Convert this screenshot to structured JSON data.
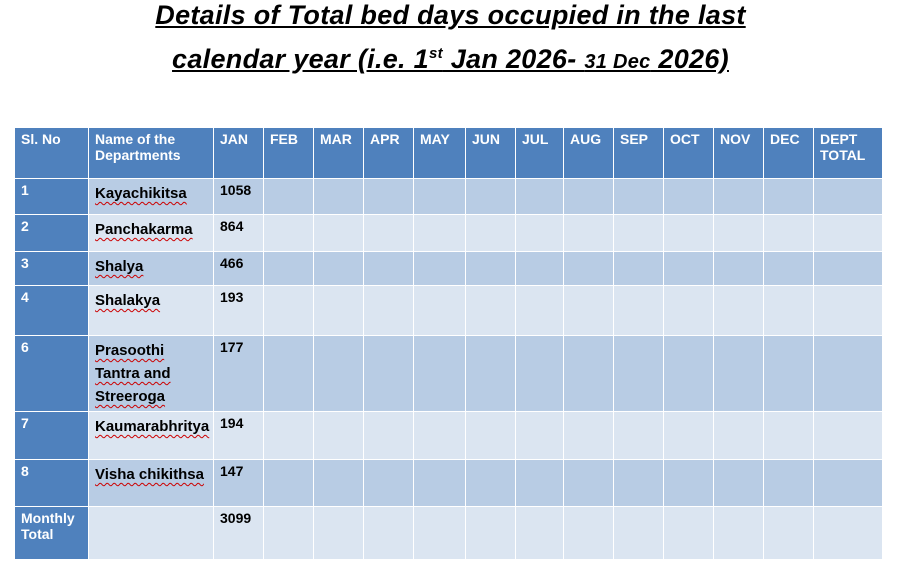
{
  "title": {
    "line1": "Details of Total bed days occupied in the last",
    "line2_a": "calendar year (i.e. 1",
    "line2_sup": "st",
    "line2_b": " Jan 2026- ",
    "line2_small": "31 Dec",
    "line2_c": " 2026)"
  },
  "headers": [
    "Sl. No",
    "Name of the Departments",
    "JAN",
    "FEB",
    "MAR",
    "APR",
    "MAY",
    "JUN",
    "JUL",
    "AUG",
    "SEP",
    "OCT",
    "NOV",
    "DEC",
    "DEPT TOTAL"
  ],
  "rows": [
    {
      "sl": "1",
      "dept": "Kayachikitsa",
      "jan": "1058"
    },
    {
      "sl": "2",
      "dept": "Panchakarma",
      "jan": "864"
    },
    {
      "sl": "3",
      "dept": "Shalya",
      "jan": "466"
    },
    {
      "sl": "4",
      "dept": "Shalakya",
      "jan": "193"
    },
    {
      "sl": "6",
      "dept": "Prasoothi Tantra and Streeroga",
      "jan": "177"
    },
    {
      "sl": "7",
      "dept": "Kaumarabhritya",
      "jan": "194"
    },
    {
      "sl": "8",
      "dept": "Visha chikithsa",
      "jan": "147"
    },
    {
      "sl": "Monthly Total",
      "dept": "",
      "jan": "3099"
    }
  ]
}
